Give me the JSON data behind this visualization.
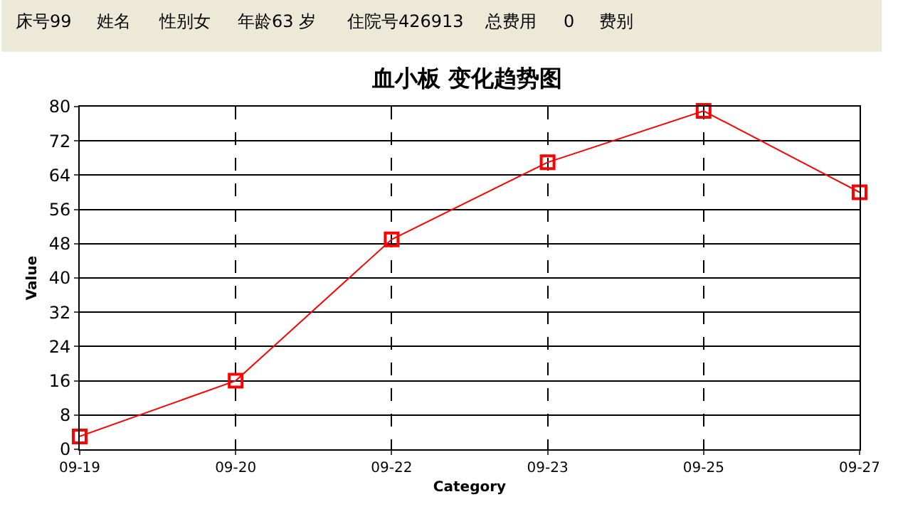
{
  "chart_data": {
    "type": "line",
    "title": "血小板 变化趋势图",
    "xlabel": "Category",
    "ylabel": "Value",
    "annotations": [
      "床号99",
      "姓名",
      "性别女",
      "年龄63 岁",
      "住院号426913",
      "总费用",
      "0",
      "费别"
    ],
    "categories": [
      "09-19",
      "09-20",
      "09-22",
      "09-23",
      "09-25",
      "09-27"
    ],
    "series": [
      {
        "color": "#ff0000",
        "values": [
          3,
          16,
          49,
          67,
          79,
          60
        ]
      }
    ],
    "ylim": [
      0,
      80
    ],
    "yticks": [
      0,
      8,
      16,
      24,
      32,
      40,
      48,
      56,
      64,
      72,
      80
    ],
    "grid": true,
    "marker": "square",
    "line_style": "solid"
  }
}
